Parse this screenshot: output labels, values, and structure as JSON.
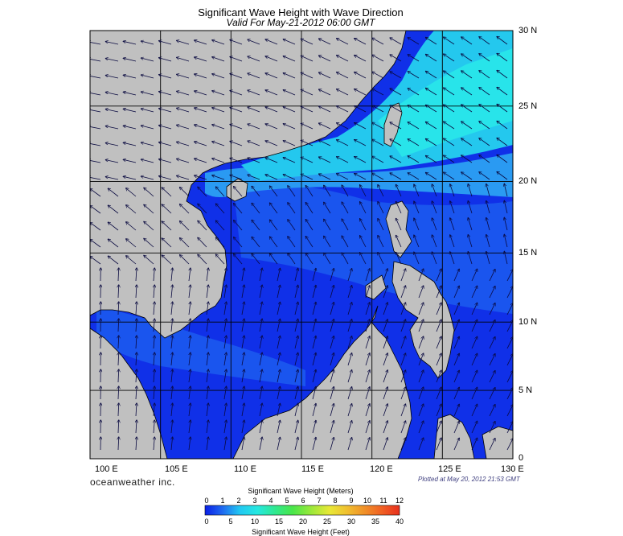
{
  "title": "Significant Wave Height with Wave Direction",
  "subtitle": "Valid For May-21-2012 06:00 GMT",
  "latitude_labels": [
    "30 N",
    "25 N",
    "20 N",
    "15 N",
    "10 N",
    "5 N",
    "0"
  ],
  "longitude_labels": [
    "100 E",
    "105 E",
    "110 E",
    "115 E",
    "120 E",
    "125 E",
    "130 E"
  ],
  "brand": "oceanweather inc.",
  "plotted": "Plotted at May 20, 2012 21:53 GMT",
  "colorbar": {
    "title": "Significant Wave Height (Meters)",
    "meters_ticks": [
      "0",
      "1",
      "2",
      "3",
      "4",
      "5",
      "6",
      "7",
      "8",
      "9",
      "10",
      "11",
      "12"
    ],
    "feet_ticks": [
      "0",
      "5",
      "10",
      "15",
      "20",
      "25",
      "30",
      "35",
      "40"
    ],
    "bottom_label": "Significant Wave Height (Feet)",
    "colors": [
      "#0a1fe6",
      "#1f6af0",
      "#22c8f2",
      "#25e8e0",
      "#30e890",
      "#49e64a",
      "#9ee83a",
      "#e8e836",
      "#f0c030",
      "#f09028",
      "#f06024",
      "#e8301e"
    ]
  },
  "colors": {
    "land": "#c0c0c0",
    "deep_sea": "#1030e8",
    "mid_sea": "#1a5cf0",
    "shallow_band": "#2a9af2",
    "high_waves": "#24e8e8",
    "very_low": "#101060"
  },
  "map": {
    "lon_range": [
      100,
      130
    ],
    "lat_range": [
      0,
      30
    ],
    "arrows": "wave direction vectors on a regular grid"
  }
}
